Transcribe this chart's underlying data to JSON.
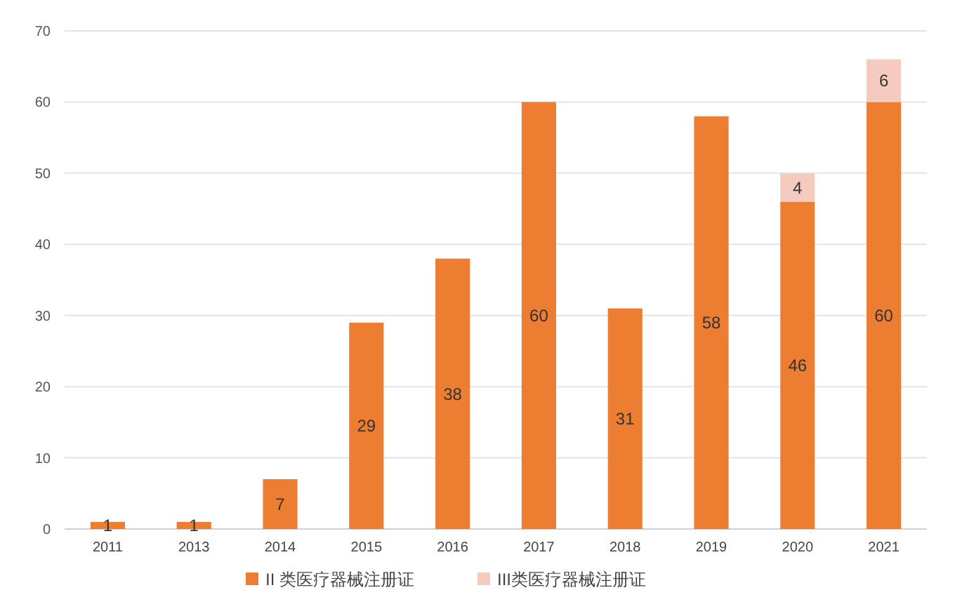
{
  "chart_data": {
    "type": "bar",
    "stacked": true,
    "categories": [
      "2011",
      "2013",
      "2014",
      "2015",
      "2016",
      "2017",
      "2018",
      "2019",
      "2020",
      "2021"
    ],
    "series": [
      {
        "name": "II 类医疗器械注册证",
        "color": "#ed7d31",
        "values": [
          1,
          1,
          7,
          29,
          38,
          60,
          31,
          58,
          46,
          60
        ]
      },
      {
        "name": "III类医疗器械注册证",
        "color": "#f6cbbf",
        "values": [
          null,
          null,
          null,
          null,
          null,
          null,
          null,
          null,
          4,
          6
        ]
      }
    ],
    "ylim": [
      0,
      70
    ],
    "yticks": [
      0,
      10,
      20,
      30,
      40,
      50,
      60,
      70
    ],
    "grid": "y",
    "legend": "bottom",
    "data_labels": true
  }
}
